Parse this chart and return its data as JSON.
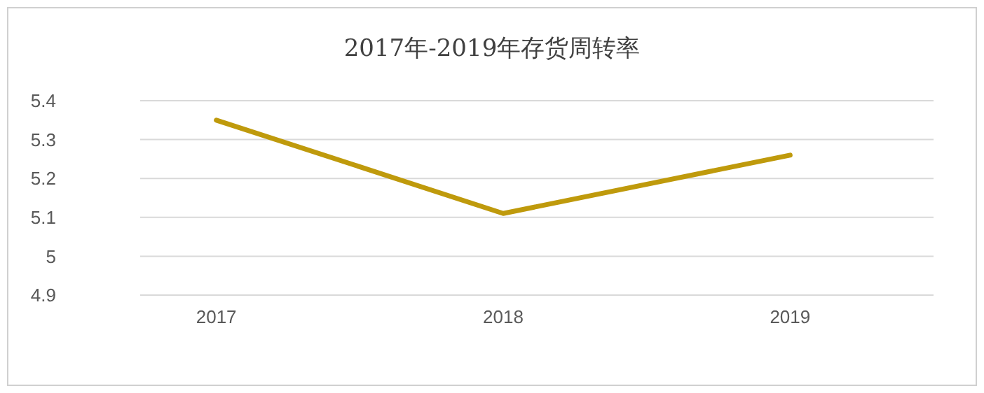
{
  "chart_data": {
    "type": "line",
    "title": "2017年-2019年存货周转率",
    "categories": [
      "2017",
      "2018",
      "2019"
    ],
    "series": [
      {
        "color": "#bf9a0c",
        "values": [
          5.35,
          5.11,
          5.26
        ]
      }
    ],
    "ylim": [
      4.9,
      5.4
    ],
    "yticks": [
      4.9,
      5,
      5.1,
      5.2,
      5.3,
      5.4
    ],
    "grid": "y",
    "marker": "none",
    "line_style": "solid"
  }
}
